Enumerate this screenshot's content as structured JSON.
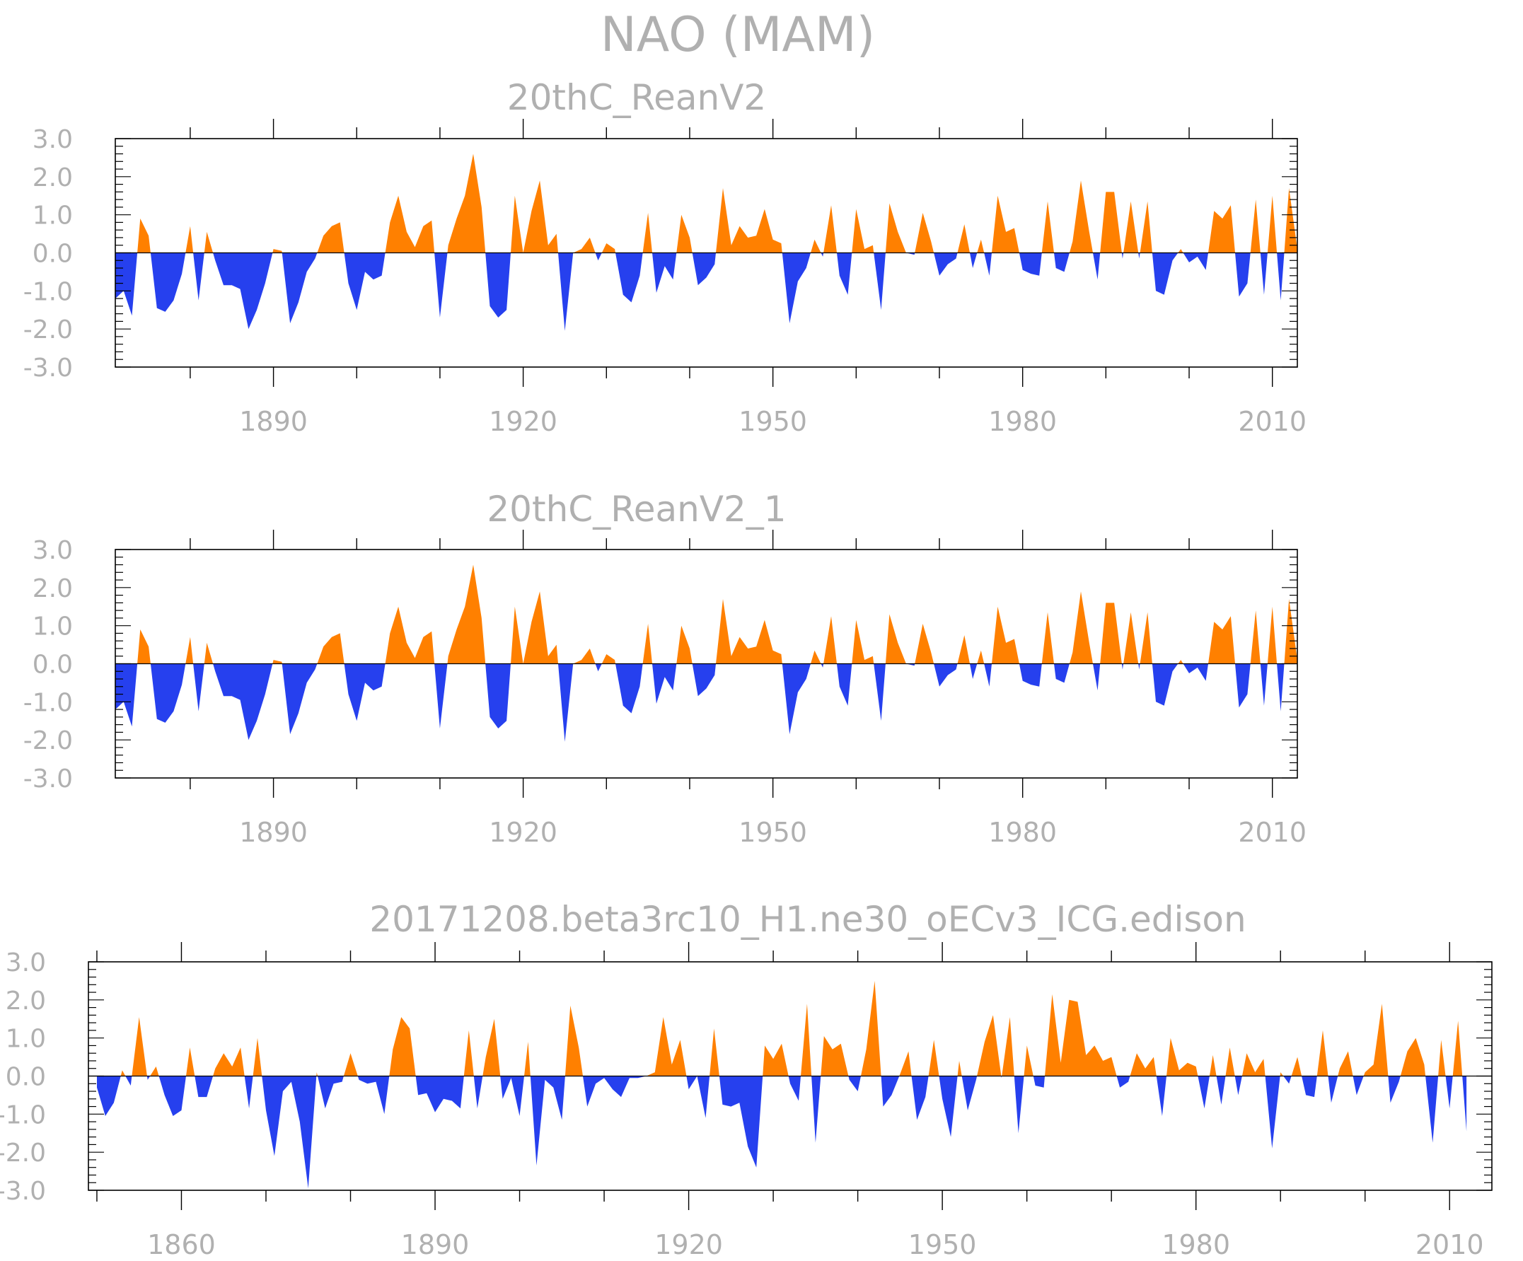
{
  "title": "NAO (MAM)",
  "colors": {
    "positive": "#FF8000",
    "negative": "#2640EE",
    "frame": "#000000",
    "text": "#B0B0B0"
  },
  "chart_data": [
    {
      "type": "area",
      "title": "20thC_ReanV2",
      "xlabel": "",
      "ylabel": "",
      "xlim": [
        1871,
        2013
      ],
      "ylim": [
        -3.0,
        3.0
      ],
      "yticks": [
        "3.0",
        "2.0",
        "1.0",
        "0.0",
        "-1.0",
        "-2.0",
        "-3.0"
      ],
      "xticks": [
        "1890",
        "1920",
        "1950",
        "1980",
        "2010"
      ],
      "x_start": 1871,
      "values": [
        -1.2,
        -1.0,
        -1.65,
        0.9,
        0.45,
        -1.45,
        -1.55,
        -1.25,
        -0.55,
        0.7,
        -1.25,
        0.55,
        -0.2,
        -0.85,
        -0.85,
        -0.95,
        -2.0,
        -1.5,
        -0.8,
        0.1,
        0.05,
        -1.85,
        -1.3,
        -0.5,
        -0.15,
        0.45,
        0.7,
        0.8,
        -0.8,
        -1.5,
        -0.5,
        -0.7,
        -0.6,
        0.8,
        1.5,
        0.55,
        0.15,
        0.7,
        0.85,
        -1.7,
        0.2,
        0.9,
        1.5,
        2.6,
        1.2,
        -1.4,
        -1.7,
        -1.5,
        1.5,
        0.0,
        1.1,
        1.9,
        0.2,
        0.5,
        -2.05,
        0.0,
        0.1,
        0.4,
        -0.2,
        0.25,
        0.1,
        -1.1,
        -1.3,
        -0.6,
        1.05,
        -1.05,
        -0.35,
        -0.7,
        1.0,
        0.4,
        -0.85,
        -0.65,
        -0.3,
        1.7,
        0.2,
        0.7,
        0.4,
        0.45,
        1.15,
        0.35,
        0.25,
        -1.85,
        -0.75,
        -0.4,
        0.35,
        -0.1,
        1.25,
        -0.6,
        -1.1,
        1.15,
        0.1,
        0.2,
        -1.5,
        1.3,
        0.55,
        0.0,
        -0.05,
        1.05,
        0.3,
        -0.6,
        -0.3,
        -0.15,
        0.75,
        -0.4,
        0.35,
        -0.6,
        1.5,
        0.55,
        0.65,
        -0.45,
        -0.55,
        -0.6,
        1.35,
        -0.4,
        -0.5,
        0.3,
        1.9,
        0.55,
        -0.7,
        1.6,
        1.6,
        -0.15,
        1.35,
        -0.15,
        1.35,
        -1.0,
        -1.1,
        -0.2,
        0.1,
        -0.25,
        -0.1,
        -0.45,
        1.1,
        0.9,
        1.25,
        -1.15,
        -0.8,
        1.4,
        -1.1,
        1.5,
        -1.25,
        1.7,
        0.1
      ]
    },
    {
      "type": "area",
      "title": "20thC_ReanV2_1",
      "xlabel": "",
      "ylabel": "",
      "xlim": [
        1871,
        2013
      ],
      "ylim": [
        -3.0,
        3.0
      ],
      "yticks": [
        "3.0",
        "2.0",
        "1.0",
        "0.0",
        "-1.0",
        "-2.0",
        "-3.0"
      ],
      "xticks": [
        "1890",
        "1920",
        "1950",
        "1980",
        "2010"
      ],
      "x_start": 1871,
      "values": [
        -1.2,
        -1.0,
        -1.65,
        0.9,
        0.45,
        -1.45,
        -1.55,
        -1.25,
        -0.55,
        0.7,
        -1.25,
        0.55,
        -0.2,
        -0.85,
        -0.85,
        -0.95,
        -2.0,
        -1.5,
        -0.8,
        0.1,
        0.05,
        -1.85,
        -1.3,
        -0.5,
        -0.15,
        0.45,
        0.7,
        0.8,
        -0.8,
        -1.5,
        -0.5,
        -0.7,
        -0.6,
        0.8,
        1.5,
        0.55,
        0.15,
        0.7,
        0.85,
        -1.7,
        0.2,
        0.9,
        1.5,
        2.6,
        1.2,
        -1.4,
        -1.7,
        -1.5,
        1.5,
        0.0,
        1.1,
        1.9,
        0.2,
        0.5,
        -2.05,
        0.0,
        0.1,
        0.4,
        -0.2,
        0.25,
        0.1,
        -1.1,
        -1.3,
        -0.6,
        1.05,
        -1.05,
        -0.35,
        -0.7,
        1.0,
        0.4,
        -0.85,
        -0.65,
        -0.3,
        1.7,
        0.2,
        0.7,
        0.4,
        0.45,
        1.15,
        0.35,
        0.25,
        -1.85,
        -0.75,
        -0.4,
        0.35,
        -0.1,
        1.25,
        -0.6,
        -1.1,
        1.15,
        0.1,
        0.2,
        -1.5,
        1.3,
        0.55,
        0.0,
        -0.05,
        1.05,
        0.3,
        -0.6,
        -0.3,
        -0.15,
        0.75,
        -0.4,
        0.35,
        -0.6,
        1.5,
        0.55,
        0.65,
        -0.45,
        -0.55,
        -0.6,
        1.35,
        -0.4,
        -0.5,
        0.3,
        1.9,
        0.55,
        -0.7,
        1.6,
        1.6,
        -0.15,
        1.35,
        -0.15,
        1.35,
        -1.0,
        -1.1,
        -0.2,
        0.1,
        -0.25,
        -0.1,
        -0.45,
        1.1,
        0.9,
        1.25,
        -1.15,
        -0.8,
        1.4,
        -1.1,
        1.5,
        -1.25,
        1.7,
        0.1
      ]
    },
    {
      "type": "area",
      "title": "20171208.beta3rc10_H1.ne30_oECv3_ICG.edison",
      "xlabel": "",
      "ylabel": "",
      "xlim": [
        1849,
        2015
      ],
      "ylim": [
        -3.0,
        3.0
      ],
      "yticks": [
        "3.0",
        "2.0",
        "1.0",
        "0.0",
        "-1.0",
        "-2.0",
        "-3.0"
      ],
      "xticks": [
        "1860",
        "1890",
        "1920",
        "1950",
        "1980",
        "2010"
      ],
      "x_start": 1850,
      "values": [
        -0.3,
        -1.05,
        -0.7,
        0.15,
        -0.25,
        1.55,
        -0.1,
        0.25,
        -0.5,
        -1.05,
        -0.9,
        0.75,
        -0.55,
        -0.55,
        0.2,
        0.6,
        0.25,
        0.75,
        -0.85,
        1.0,
        -0.9,
        -2.1,
        -0.4,
        -0.15,
        -1.2,
        -2.95,
        0.1,
        -0.85,
        -0.2,
        -0.15,
        0.6,
        -0.1,
        -0.2,
        -0.15,
        -1.0,
        0.7,
        1.55,
        1.25,
        -0.5,
        -0.45,
        -0.95,
        -0.6,
        -0.65,
        -0.85,
        1.2,
        -0.85,
        0.5,
        1.5,
        -0.6,
        -0.05,
        -1.05,
        0.9,
        -2.35,
        -0.1,
        -0.3,
        -1.15,
        1.85,
        0.75,
        -0.8,
        -0.2,
        -0.05,
        -0.35,
        -0.55,
        -0.05,
        -0.05,
        0.0,
        0.1,
        1.55,
        0.3,
        0.95,
        -0.35,
        0.0,
        -1.1,
        1.25,
        -0.75,
        -0.8,
        -0.7,
        -1.85,
        -2.4,
        0.8,
        0.45,
        0.85,
        -0.2,
        -0.65,
        1.9,
        -1.75,
        1.05,
        0.7,
        0.85,
        -0.1,
        -0.4,
        0.7,
        2.5,
        -0.8,
        -0.5,
        0.05,
        0.65,
        -1.15,
        -0.55,
        0.95,
        -0.6,
        -1.6,
        0.4,
        -0.9,
        -0.1,
        0.9,
        1.6,
        -0.05,
        1.55,
        -1.5,
        0.8,
        -0.25,
        -0.3,
        2.15,
        0.35,
        2.0,
        1.95,
        0.55,
        0.8,
        0.4,
        0.5,
        -0.3,
        -0.15,
        0.6,
        0.2,
        0.5,
        -1.05,
        1.0,
        0.15,
        0.35,
        0.25,
        -0.85,
        0.55,
        -0.75,
        0.75,
        -0.5,
        0.6,
        0.1,
        0.45,
        -1.9,
        0.1,
        -0.2,
        0.5,
        -0.5,
        -0.55,
        1.2,
        -0.7,
        0.2,
        0.65,
        -0.5,
        0.1,
        0.3,
        1.9,
        -0.7,
        -0.15,
        0.65,
        1.0,
        0.3,
        -1.75,
        0.95,
        -0.85,
        1.45,
        -1.45
      ]
    }
  ]
}
